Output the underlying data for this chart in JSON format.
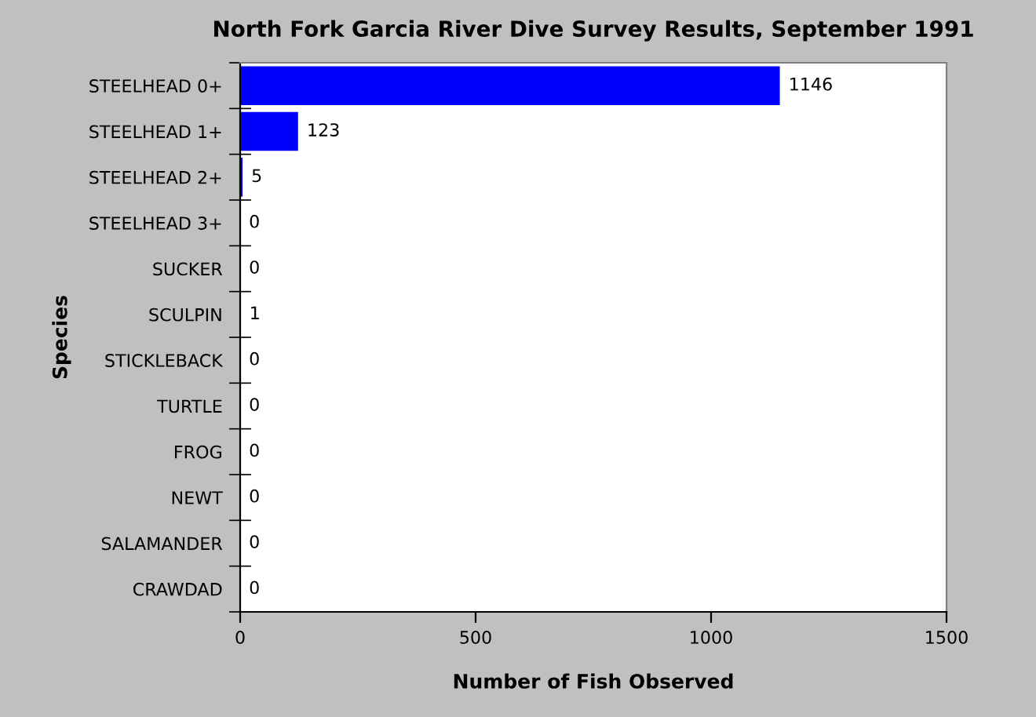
{
  "chart_data": {
    "type": "bar",
    "orientation": "horizontal",
    "title": "North Fork Garcia River Dive Survey Results, September 1991",
    "xlabel": "Number of Fish Observed",
    "ylabel": "Species",
    "categories": [
      "STEELHEAD 0+",
      "STEELHEAD 1+",
      "STEELHEAD 2+",
      "STEELHEAD 3+",
      "SUCKER",
      "SCULPIN",
      "STICKLEBACK",
      "TURTLE",
      "FROG",
      "NEWT",
      "SALAMANDER",
      "CRAWDAD"
    ],
    "values": [
      1146,
      123,
      5,
      0,
      0,
      1,
      0,
      0,
      0,
      0,
      0,
      0
    ],
    "color": "#0000ff",
    "xlim": [
      0,
      1500
    ],
    "xticks": [
      0,
      500,
      1000,
      1500
    ],
    "data_labels": true,
    "grid": false
  }
}
